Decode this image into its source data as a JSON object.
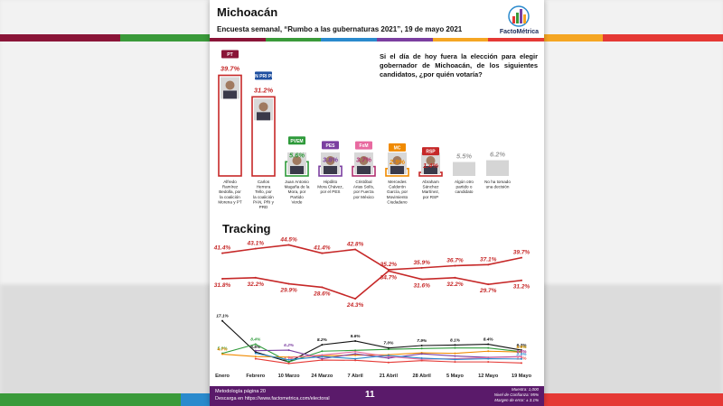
{
  "header": {
    "title": "Michoacán",
    "subtitle": "Encuesta semanal, “Rumbo a las gubernaturas 2021”, 19 de mayo 2021",
    "brand": "FactoMétrica"
  },
  "colors": {
    "band": [
      "#8a1538",
      "#3a9a3a",
      "#2a8acd",
      "#7b3fa0",
      "#f5a623",
      "#e53935"
    ],
    "red": "#c62828",
    "dark": "#222222"
  },
  "question": "Si el día de hoy fuera la elección para elegir gobernador de Michoacán, de los siguientes candidatos, ¿por quién votaría?",
  "tracking_title": "Tracking",
  "footer": {
    "note_line1": "Metodología página 20",
    "note_line2": "Descarga en https://www.factometrica.com/electoral",
    "page": "11",
    "meta_line1": "Muestra: 1,000",
    "meta_line2": "Nivel de Confianza: 95%",
    "meta_line3": "Margen de error: ± 3.1%"
  },
  "chart_data": [
    {
      "type": "bar",
      "categories": [
        "Alfredo Ramírez Bedolla, por la coalición Morena y PT",
        "Carlos Herrera Tello, por la coalición PAN, PRI y PRD",
        "Juan Antonio Magaña de la Mora, por Partido Verde",
        "Hipólito Mora Chávez, por el PES",
        "Cristóbal Arias Solís, por Fuerza por México",
        "Mercedes Calderón García, por Movimiento Ciudadano",
        "Abraham Sánchez Martínez, por RSP",
        "Algún otro partido o candidato",
        "No ha tomado una decisión"
      ],
      "values": [
        39.7,
        31.2,
        5.6,
        3.8,
        3.7,
        2.9,
        1.4,
        5.5,
        6.2
      ],
      "value_labels": [
        "39.7%",
        "31.2%",
        "5.6%",
        "3.8%",
        "3.7%",
        "2.9%",
        "1.4%",
        "5.5%",
        "6.2%"
      ],
      "party_tags": [
        "PT",
        "PAN PRI PRD",
        "PVEM",
        "PES",
        "FxM",
        "MC",
        "RSP",
        "",
        ""
      ],
      "label_colors": [
        "#c62828",
        "#c62828",
        "#2e9a3a",
        "#7b3fa0",
        "#b03070",
        "#f08a00",
        "#c62828",
        "#9e9e9e",
        "#9e9e9e"
      ],
      "tag_colors": [
        "#8a1538",
        "#1e4fa0",
        "#2e9a3a",
        "#7b3fa0",
        "#e86aa0",
        "#f08a00",
        "#c62828",
        "",
        ""
      ],
      "ylim": [
        0,
        42
      ]
    },
    {
      "type": "line",
      "categories": [
        "Enero",
        "Febrero",
        "10 Marzo",
        "24 Marzo",
        "7 Abril",
        "21 Abril",
        "28 Abril",
        "5 Mayo",
        "12 Mayo",
        "19 Mayo"
      ],
      "series_top": [
        {
          "values": [
            41.4,
            43.1,
            44.5,
            41.4,
            42.8,
            35.2,
            35.9,
            36.7,
            37.1,
            39.7
          ],
          "labels": [
            "41.4%",
            "43.1%",
            "44.5%",
            "41.4%",
            "42.8%",
            "35.2%",
            "35.9%",
            "36.7%",
            "37.1%",
            "39.7%"
          ],
          "color": "#c62828"
        },
        {
          "values": [
            31.8,
            32.2,
            29.9,
            28.6,
            24.3,
            34.7,
            31.6,
            32.2,
            29.7,
            31.2
          ],
          "labels": [
            "31.8%",
            "32.2%",
            "29.9%",
            "28.6%",
            "24.3%",
            "34.7%",
            "31.6%",
            "32.2%",
            "29.7%",
            "31.2%"
          ],
          "color": "#c62828"
        }
      ],
      "series_bottom": [
        {
          "values": [
            17.1,
            5.5,
            1.8,
            8.2,
            9.6,
            7.0,
            7.9,
            8.1,
            8.4,
            6.2
          ],
          "labels": [
            "17.1%",
            "5.5%",
            "",
            "8.2%",
            "9.6%",
            "7.0%",
            "7.9%",
            "8.1%",
            "8.4%",
            "6.2%"
          ],
          "color": "#111111"
        },
        {
          "values": [
            5.0,
            8.4,
            1.8,
            5.8,
            6.1,
            6.5,
            6.8,
            7.0,
            7.0,
            5.6
          ],
          "labels": [
            "5.0%",
            "8.4%",
            "",
            "",
            "",
            "",
            "",
            "",
            "",
            "5.6%"
          ],
          "color": "#2e9a3a"
        },
        {
          "values": [
            4.7,
            3.8,
            3.6,
            4.1,
            4.3,
            4.5,
            5.2,
            5.0,
            5.8,
            5.5
          ],
          "labels": [
            "4.7%",
            "",
            "",
            "",
            "",
            "",
            "",
            "",
            "",
            "5.5%"
          ],
          "color": "#f08a00"
        },
        {
          "values": [
            null,
            6.0,
            6.2,
            3.0,
            4.8,
            3.2,
            4.8,
            4.0,
            3.5,
            3.8
          ],
          "labels": [
            "",
            "",
            "6.2%",
            "",
            "",
            "",
            "",
            "",
            "",
            "3.8%"
          ],
          "color": "#7b3fa0"
        },
        {
          "values": [
            null,
            3.0,
            1.2,
            2.5,
            2.4,
            1.6,
            2.3,
            1.8,
            1.8,
            1.4
          ],
          "labels": [
            "",
            "",
            "1.2%",
            "",
            "",
            "",
            "",
            "",
            "",
            "1.4%"
          ],
          "color": "#e53935"
        },
        {
          "values": [
            null,
            null,
            3.4,
            4.4,
            5.6,
            3.8,
            2.8,
            3.0,
            3.4,
            3.7
          ],
          "labels": [
            "",
            "",
            "",
            "",
            "",
            "",
            "",
            "",
            "",
            "3.7%"
          ],
          "color": "#e86aa0"
        },
        {
          "values": [
            null,
            5.0,
            2.6,
            3.8,
            3.0,
            4.2,
            3.2,
            2.7,
            3.0,
            2.9
          ],
          "labels": [
            "",
            "",
            "",
            "",
            "",
            "",
            "",
            "",
            "",
            "2.9%"
          ],
          "color": "#2a8acd"
        }
      ]
    }
  ]
}
